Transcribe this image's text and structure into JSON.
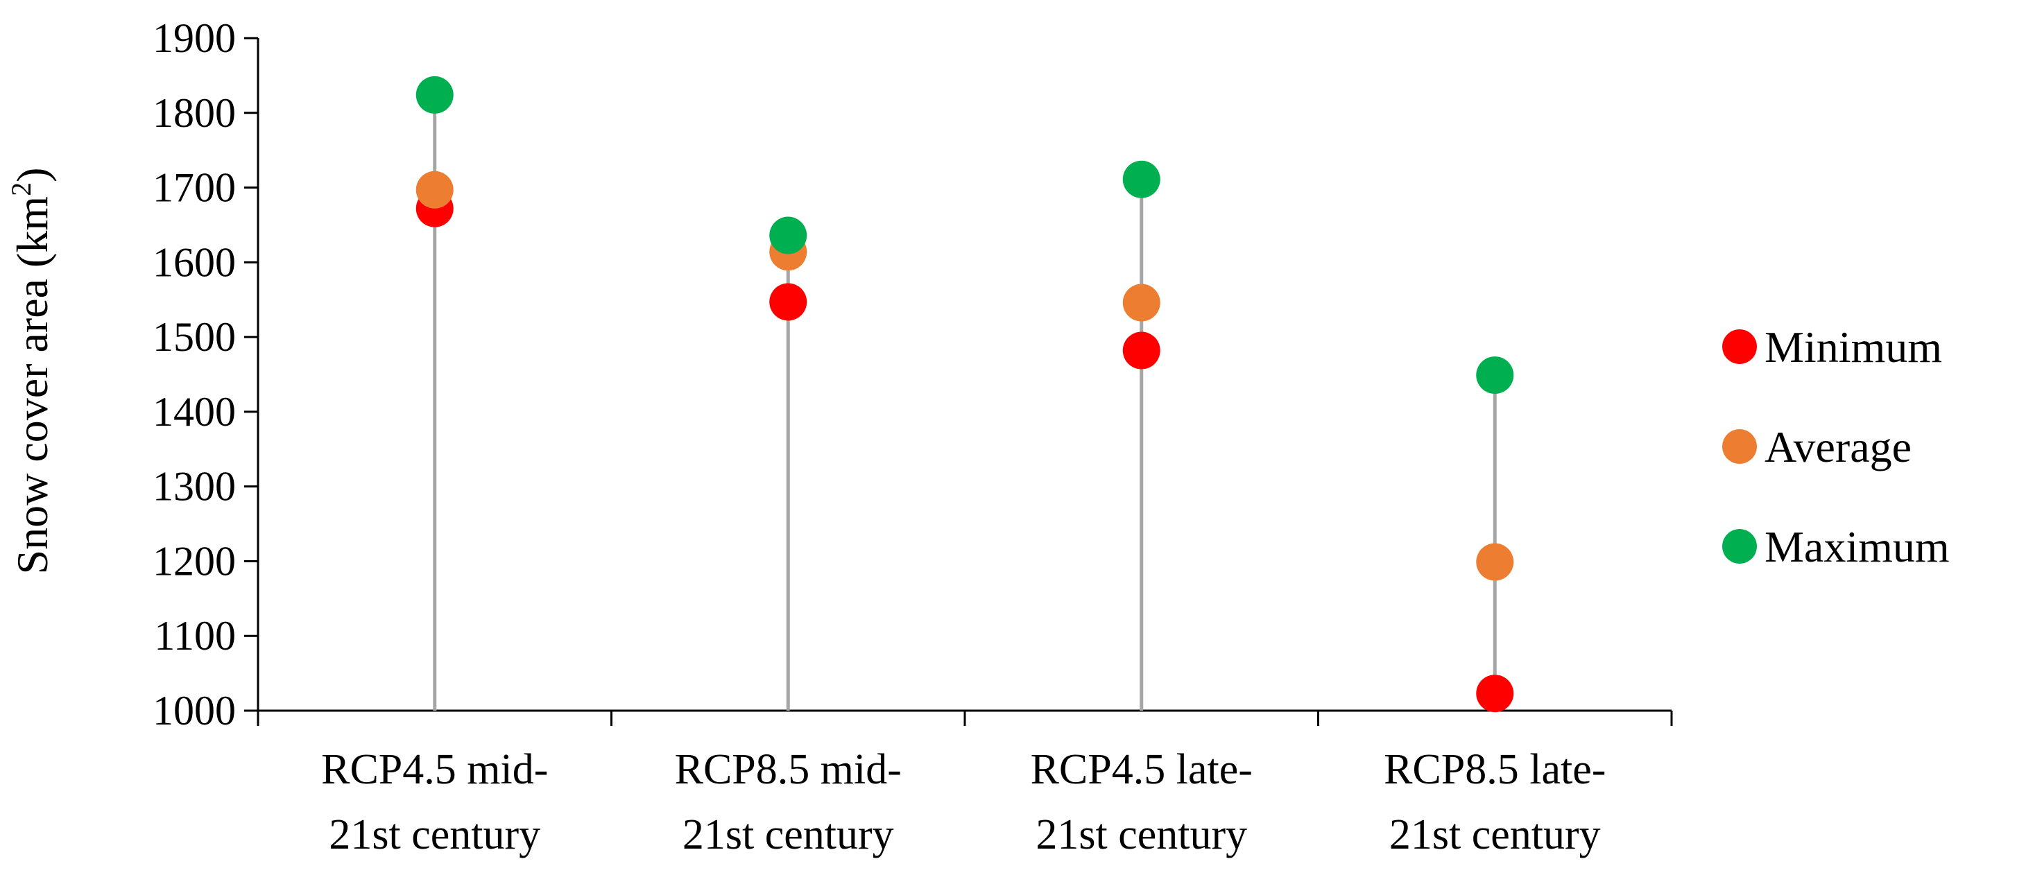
{
  "chart_data": {
    "type": "scatter",
    "categories": [
      [
        "RCP4.5 mid-",
        "21st century"
      ],
      [
        "RCP8.5 mid-",
        "21st century"
      ],
      [
        "RCP4.5 late-",
        "21st century"
      ],
      [
        "RCP8.5 late-",
        "21st century"
      ]
    ],
    "series": [
      {
        "name": "Minimum",
        "color": "#ff0000",
        "values": [
          1672,
          1547,
          1482,
          1023
        ]
      },
      {
        "name": "Average",
        "color": "#ed7d31",
        "values": [
          1697,
          1614,
          1546,
          1199
        ]
      },
      {
        "name": "Maximum",
        "color": "#00b050",
        "values": [
          1824,
          1636,
          1711,
          1449
        ]
      }
    ],
    "drop_line_color": "#a6a6a6",
    "ylabel_main": "Snow cover area (km",
    "ylabel_sup": "2",
    "ylabel_close": ")",
    "ylim": [
      1000,
      1900
    ],
    "yticks": [
      1000,
      1100,
      1200,
      1300,
      1400,
      1500,
      1600,
      1700,
      1800,
      1900
    ],
    "grid": false,
    "legend_position": "right"
  }
}
